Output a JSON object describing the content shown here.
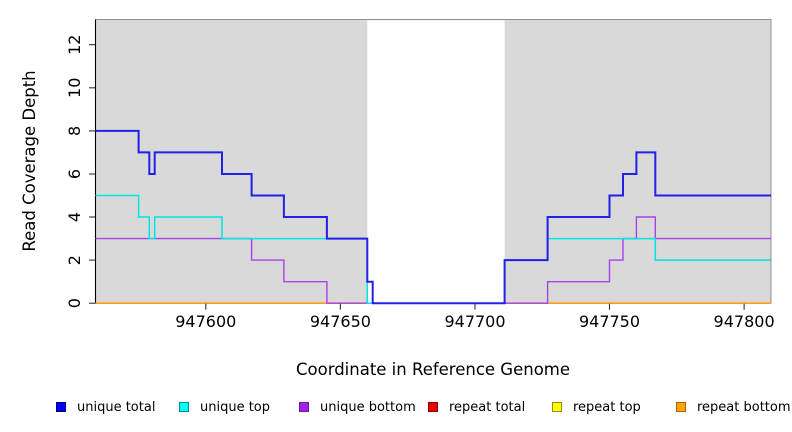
{
  "figure": {
    "background": "#ffffff"
  },
  "chart_data": {
    "type": "line",
    "subtype": "step",
    "title": "",
    "xlabel": "Coordinate in Reference Genome",
    "ylabel": "Read Coverage Depth",
    "xlim": [
      947559,
      947810
    ],
    "ylim": [
      0,
      13.17
    ],
    "x_ticks": [
      "947600",
      "947650",
      "947700",
      "947750",
      "947800"
    ],
    "x_tick_values": [
      947600,
      947650,
      947700,
      947750,
      947800
    ],
    "y_ticks": [
      "0",
      "2",
      "4",
      "6",
      "8",
      "10",
      "12"
    ],
    "y_tick_values": [
      0,
      2,
      4,
      6,
      8,
      10,
      12
    ],
    "grid": false,
    "panel_bg": "#d9d9d9",
    "panel_border": "#8f8f8f",
    "axis_color": "#000000",
    "masked_region": {
      "x0": 947660,
      "x1": 947711,
      "color": "#ffffff"
    },
    "series": [
      {
        "name": "repeat total",
        "layer": "under-mask",
        "color": "#e02424",
        "width": 1.4,
        "points": [
          [
            947559,
            0
          ]
        ]
      },
      {
        "name": "repeat top",
        "layer": "under-mask",
        "color": "#f2e205",
        "width": 1.4,
        "points": [
          [
            947559,
            0
          ]
        ]
      },
      {
        "name": "repeat bottom",
        "layer": "under-mask",
        "color": "#ff9e1b",
        "width": 1.7,
        "points": [
          [
            947559,
            0
          ]
        ]
      },
      {
        "name": "unique bottom",
        "layer": "over-mask",
        "color": "#a743ea",
        "width": 1.4,
        "points": [
          [
            947559,
            3
          ],
          [
            947617,
            2
          ],
          [
            947629,
            1
          ],
          [
            947645,
            0
          ],
          [
            947727,
            1
          ],
          [
            947750,
            2
          ],
          [
            947755,
            3
          ],
          [
            947760,
            4
          ],
          [
            947767,
            3
          ]
        ]
      },
      {
        "name": "unique top",
        "layer": "over-mask",
        "color": "#00e4e4",
        "width": 1.5,
        "points": [
          [
            947559,
            5
          ],
          [
            947575,
            4
          ],
          [
            947579,
            3
          ],
          [
            947581,
            4
          ],
          [
            947606,
            3
          ],
          [
            947660,
            0
          ],
          [
            947711,
            2
          ],
          [
            947727,
            3
          ],
          [
            947767,
            2
          ]
        ]
      },
      {
        "name": "unique total",
        "layer": "over-mask",
        "color": "#2121e8",
        "width": 2.0,
        "points": [
          [
            947559,
            8
          ],
          [
            947575,
            7
          ],
          [
            947579,
            6
          ],
          [
            947581,
            7
          ],
          [
            947606,
            6
          ],
          [
            947617,
            5
          ],
          [
            947629,
            4
          ],
          [
            947645,
            3
          ],
          [
            947660,
            1
          ],
          [
            947662,
            0
          ],
          [
            947711,
            2
          ],
          [
            947727,
            4
          ],
          [
            947750,
            5
          ],
          [
            947755,
            6
          ],
          [
            947760,
            7
          ],
          [
            947767,
            5
          ]
        ]
      }
    ],
    "legend": {
      "position": "bottom",
      "items": [
        {
          "label": "unique total",
          "fill": "#0202ee",
          "border": "#000090"
        },
        {
          "label": "unique top",
          "fill": "#00ffff",
          "border": "#00898d"
        },
        {
          "label": "unique bottom",
          "fill": "#a020f0",
          "border": "#6a1b9a"
        },
        {
          "label": "repeat total",
          "fill": "#f00000",
          "border": "#900000"
        },
        {
          "label": "repeat top",
          "fill": "#ffff00",
          "border": "#909000"
        },
        {
          "label": "repeat bottom",
          "fill": "#ffa500",
          "border": "#a86400"
        }
      ]
    }
  }
}
